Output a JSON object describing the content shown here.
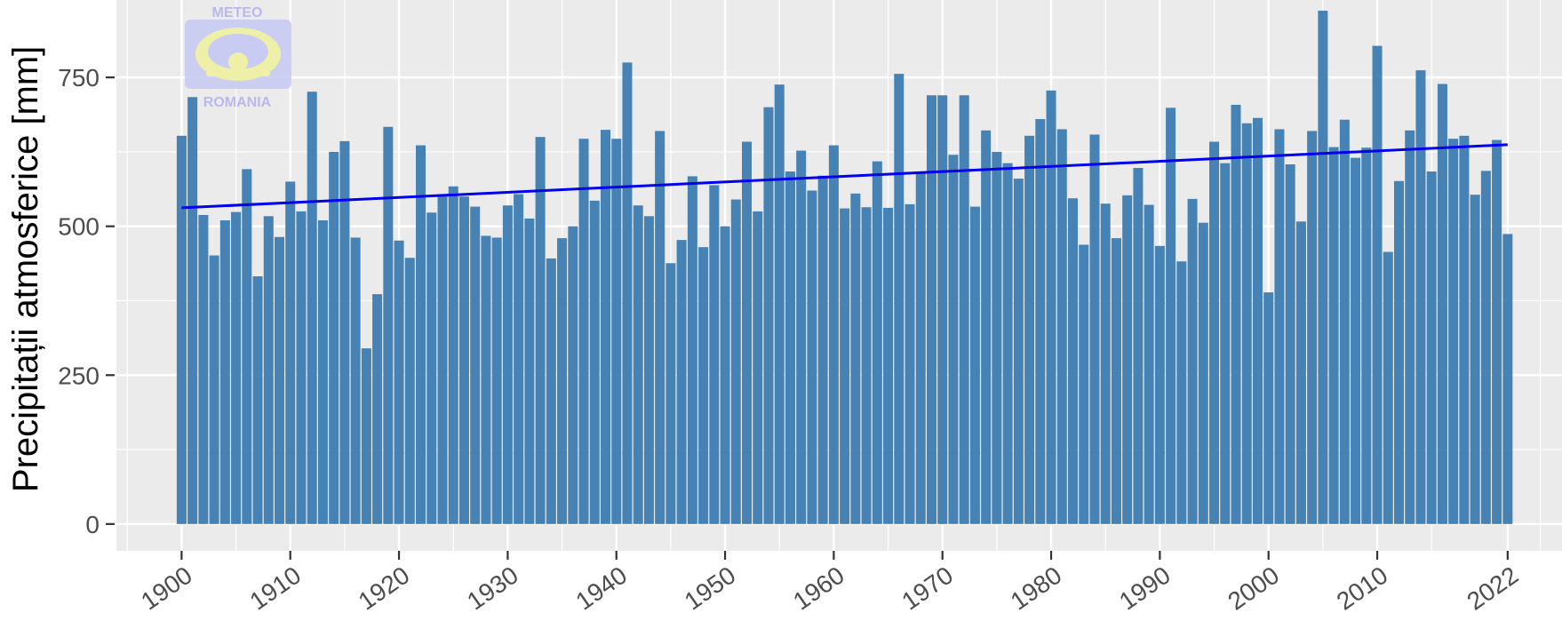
{
  "chart_data": {
    "type": "bar",
    "title": "",
    "xlabel": "",
    "ylabel": "Precipitații atmosferice [mm]",
    "x_ticks": [
      1900,
      1910,
      1920,
      1930,
      1940,
      1950,
      1960,
      1970,
      1980,
      1990,
      2000,
      2010,
      2022
    ],
    "y_ticks": [
      0,
      250,
      500,
      750
    ],
    "xlim": [
      1894,
      2027
    ],
    "ylim": [
      -45,
      880
    ],
    "grid": true,
    "colors": {
      "bar": "#4682b4",
      "trend": "#0000ee",
      "panel": "#ebebeb",
      "grid": "#ffffff"
    },
    "x": [
      1900,
      1901,
      1902,
      1903,
      1904,
      1905,
      1906,
      1907,
      1908,
      1909,
      1910,
      1911,
      1912,
      1913,
      1914,
      1915,
      1916,
      1917,
      1918,
      1919,
      1920,
      1921,
      1922,
      1923,
      1924,
      1925,
      1926,
      1927,
      1928,
      1929,
      1930,
      1931,
      1932,
      1933,
      1934,
      1935,
      1936,
      1937,
      1938,
      1939,
      1940,
      1941,
      1942,
      1943,
      1944,
      1945,
      1946,
      1947,
      1948,
      1949,
      1950,
      1951,
      1952,
      1953,
      1954,
      1955,
      1956,
      1957,
      1958,
      1959,
      1960,
      1961,
      1962,
      1963,
      1964,
      1965,
      1966,
      1967,
      1968,
      1969,
      1970,
      1971,
      1972,
      1973,
      1974,
      1975,
      1976,
      1977,
      1978,
      1979,
      1980,
      1981,
      1982,
      1983,
      1984,
      1985,
      1986,
      1987,
      1988,
      1989,
      1990,
      1991,
      1992,
      1993,
      1994,
      1995,
      1996,
      1997,
      1998,
      1999,
      2000,
      2001,
      2002,
      2003,
      2004,
      2005,
      2006,
      2007,
      2008,
      2009,
      2010,
      2011,
      2012,
      2013,
      2014,
      2015,
      2016,
      2017,
      2018,
      2019,
      2020,
      2021,
      2022
    ],
    "values": [
      652,
      717,
      519,
      451,
      510,
      524,
      596,
      416,
      517,
      482,
      575,
      525,
      726,
      510,
      625,
      643,
      481,
      295,
      386,
      667,
      476,
      447,
      636,
      523,
      551,
      567,
      550,
      533,
      484,
      481,
      535,
      554,
      513,
      650,
      446,
      480,
      500,
      647,
      543,
      662,
      647,
      775,
      535,
      517,
      660,
      438,
      477,
      584,
      465,
      569,
      500,
      545,
      642,
      525,
      700,
      738,
      592,
      627,
      560,
      585,
      636,
      530,
      555,
      532,
      609,
      531,
      756,
      537,
      591,
      720,
      720,
      620,
      720,
      533,
      661,
      625,
      606,
      580,
      652,
      680,
      728,
      663,
      547,
      469,
      654,
      538,
      480,
      552,
      598,
      536,
      467,
      699,
      441,
      546,
      506,
      642,
      606,
      704,
      673,
      682,
      389,
      663,
      604,
      508,
      660,
      862,
      633,
      679,
      615,
      632,
      803,
      457,
      576,
      661,
      762,
      592,
      739,
      647,
      652,
      553,
      593,
      645,
      487
    ],
    "trend": {
      "name": "",
      "x": [
        1900,
        2022
      ],
      "values": [
        531,
        637
      ]
    }
  },
  "watermark": {
    "top_text": "METEO",
    "bottom_text": "ROMANIA"
  }
}
